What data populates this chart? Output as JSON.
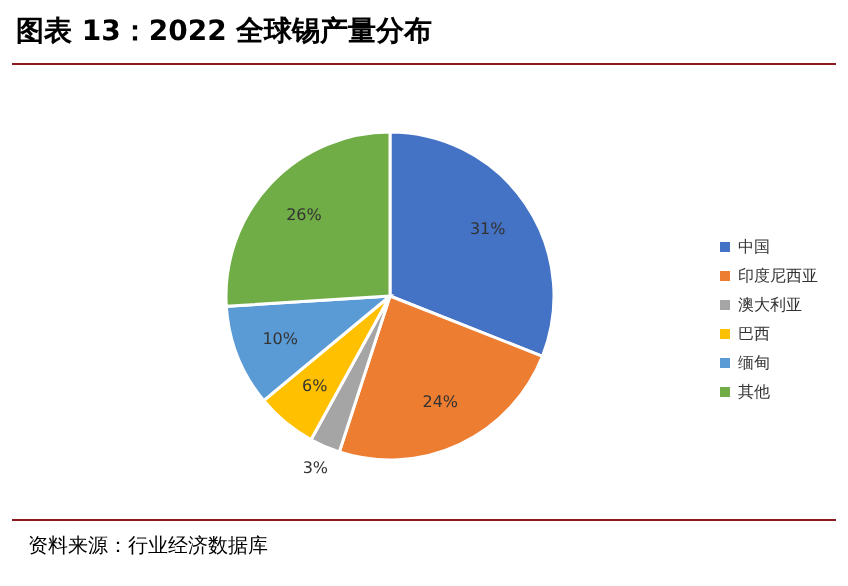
{
  "chart_data": {
    "type": "pie",
    "title": "图表 13：2022 全球锡产量分布",
    "categories": [
      "中国",
      "印度尼西亚",
      "澳大利亚",
      "巴西",
      "缅甸",
      "其他"
    ],
    "values": [
      31,
      24,
      3,
      6,
      10,
      26
    ],
    "colors": [
      "#4472c4",
      "#ed7d31",
      "#a5a5a5",
      "#ffc000",
      "#5b9bd5",
      "#70ad47"
    ],
    "value_labels": [
      "31%",
      "24%",
      "3%",
      "6%",
      "10%",
      "26%"
    ],
    "legend": "right",
    "annotations": [
      "资料来源：行业经济数据库"
    ]
  }
}
